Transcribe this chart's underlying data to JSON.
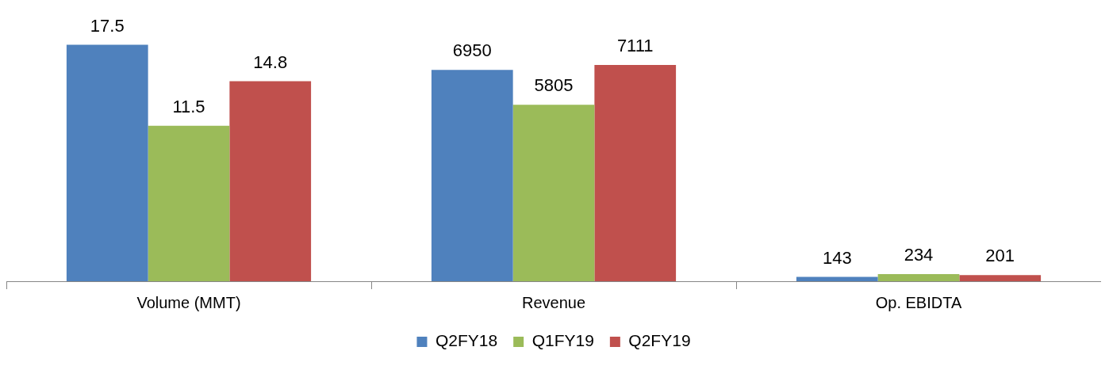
{
  "chart_data": {
    "type": "bar",
    "categories": [
      "Volume (MMT)",
      "Revenue",
      "Op. EBIDTA"
    ],
    "series": [
      {
        "name": "Q2FY18",
        "color": "#4f81bd",
        "values": [
          17.5,
          null,
          null
        ]
      },
      {
        "name": "Q1FY19",
        "color": "#9bbb59",
        "values": [
          11.5,
          null,
          null
        ]
      },
      {
        "name": "Q2FY19",
        "color": "#c0504d",
        "values": [
          14.8,
          null,
          null
        ]
      },
      {
        "color": "#4f81bd",
        "values": [
          null,
          6950,
          143
        ],
        "axis": "y2"
      },
      {
        "color": "#9bbb59",
        "values": [
          null,
          5805,
          234
        ],
        "axis": "y2"
      },
      {
        "color": "#c0504d",
        "values": [
          null,
          7111,
          201
        ],
        "axis": "y2"
      }
    ],
    "data_labels": true,
    "tick_labels": "x",
    "grid": false,
    "legend": "bottom"
  }
}
